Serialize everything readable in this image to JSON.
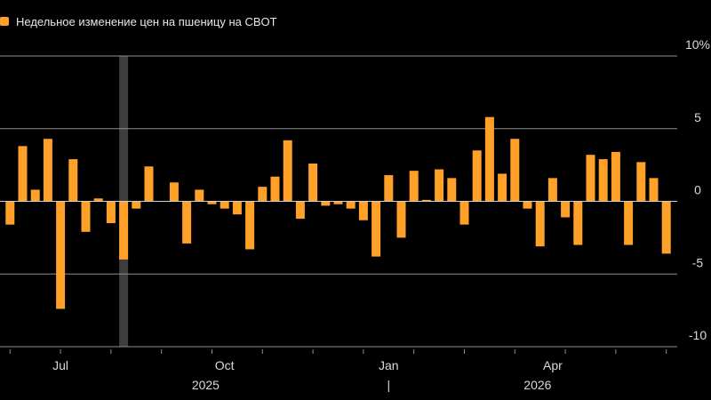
{
  "legend": {
    "label": "Недельное изменение цен на пшеницу на CBOT"
  },
  "colors": {
    "bar": "#FFA028",
    "grid": "#8f8f8f",
    "text": "#d9d9d9",
    "highlight": "#3d3d3d",
    "zero": "#d0d0d0"
  },
  "chart_data": {
    "type": "bar",
    "title": "",
    "series": [
      {
        "name": "Недельное изменение цен на пшеницу на CBOT"
      }
    ],
    "ylim": [
      -10,
      10
    ],
    "y_ticks": [
      {
        "value": 10,
        "label": "10%"
      },
      {
        "value": 5,
        "label": "5"
      },
      {
        "value": 0,
        "label": "0"
      },
      {
        "value": -5,
        "label": "-5"
      },
      {
        "value": -10,
        "label": "-10"
      }
    ],
    "x_month_labels": [
      {
        "week_index": 4,
        "label": "Jul"
      },
      {
        "week_index": 17,
        "label": "Oct"
      },
      {
        "week_index": 30,
        "label": "Jan"
      },
      {
        "week_index": 43,
        "label": "Apr"
      }
    ],
    "x_year_labels": [
      {
        "week_index": 15.5,
        "label": "2025"
      },
      {
        "week_index": 41.8,
        "label": "2026"
      }
    ],
    "year_separator": {
      "week_index": 30,
      "label": "|"
    },
    "highlight_week_index": 9,
    "values": [
      -1.6,
      3.8,
      0.8,
      4.3,
      -7.4,
      2.9,
      -2.1,
      0.2,
      -1.5,
      -4.0,
      -0.5,
      2.4,
      0.0,
      1.3,
      -2.9,
      0.8,
      -0.2,
      -0.5,
      -0.9,
      -3.3,
      1.0,
      1.7,
      4.2,
      -1.2,
      2.6,
      -0.3,
      -0.2,
      -0.5,
      -1.3,
      -3.8,
      1.8,
      -2.5,
      2.1,
      0.1,
      2.2,
      1.6,
      -1.6,
      3.5,
      5.8,
      1.9,
      4.3,
      -0.5,
      -3.1,
      1.6,
      -1.1,
      -3.0,
      3.2,
      2.9,
      3.4,
      -3.0,
      2.7,
      1.6,
      -3.6
    ]
  }
}
